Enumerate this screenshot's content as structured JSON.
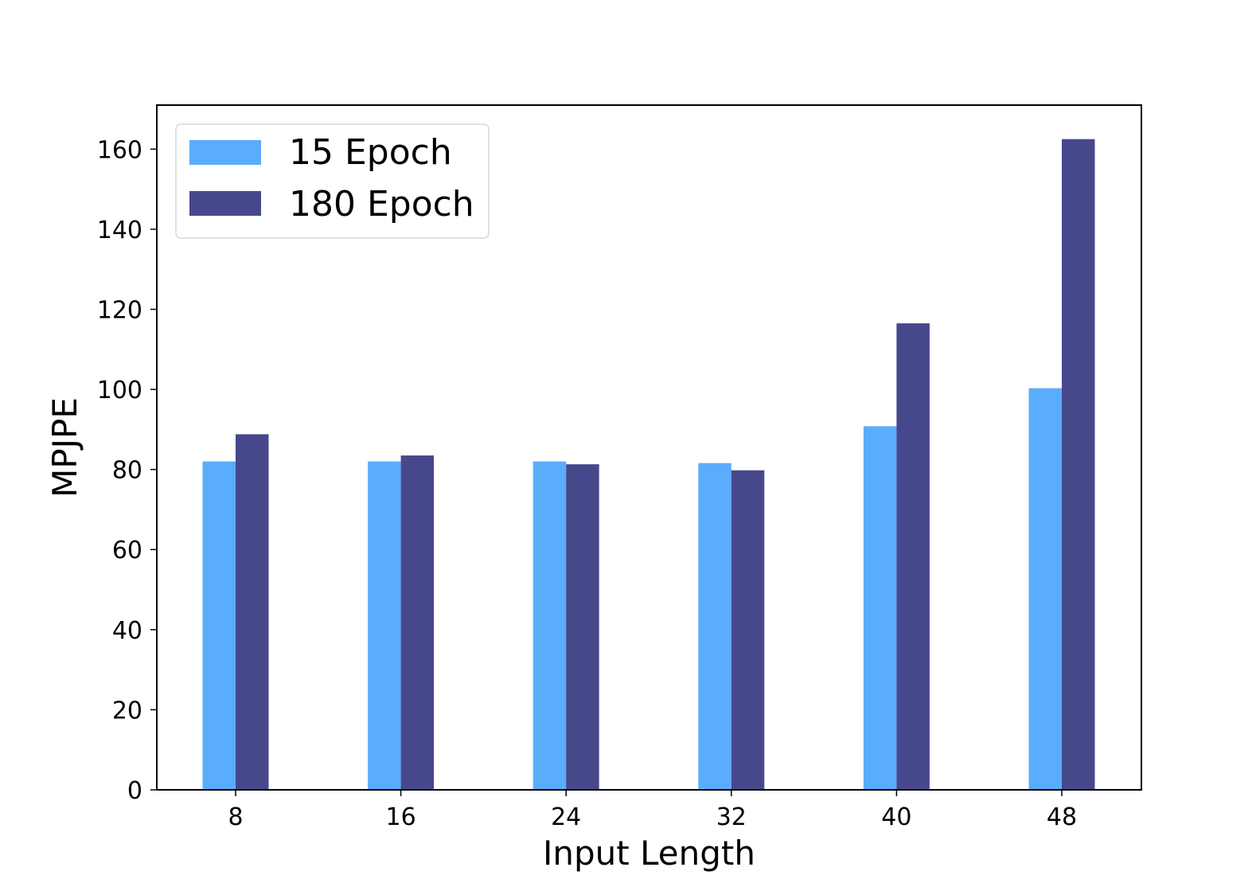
{
  "chart_data": {
    "type": "bar",
    "categories": [
      "8",
      "16",
      "24",
      "32",
      "40",
      "48"
    ],
    "series": [
      {
        "name": "15 Epoch",
        "color": "#5aacfd",
        "values": [
          82,
          82,
          82,
          81.6,
          90.8,
          100.3
        ]
      },
      {
        "name": "180 Epoch",
        "color": "#47488b",
        "values": [
          88.8,
          83.5,
          81.3,
          79.8,
          116.5,
          162.5
        ]
      }
    ],
    "title": "",
    "xlabel": "Input Length",
    "ylabel": "MPJPE",
    "ylim": [
      0,
      171
    ],
    "yticks": [
      0,
      20,
      40,
      60,
      80,
      100,
      120,
      140,
      160
    ],
    "grid": false,
    "legend_position": "top-left"
  }
}
